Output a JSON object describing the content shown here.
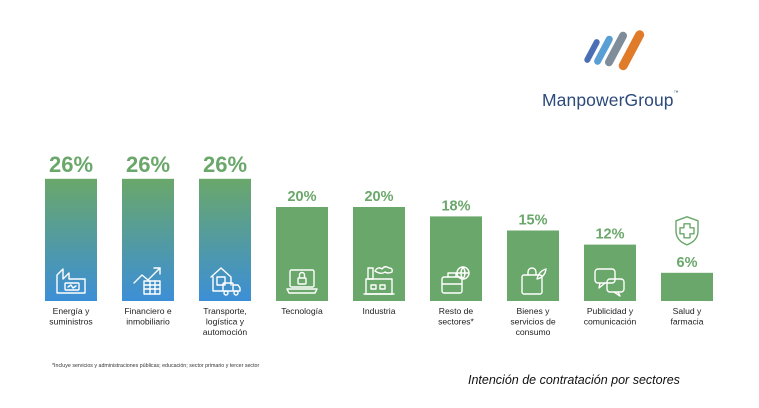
{
  "brand": {
    "name": "ManpowerGroup",
    "trademark": "™",
    "colors": [
      "#4a6fb5",
      "#5a9fd4",
      "#7f8c99",
      "#e07b2a"
    ]
  },
  "chart_data": {
    "type": "bar",
    "categories": [
      "Energía y suministros",
      "Financiero e inmobiliario",
      "Transporte, logística y automoción",
      "Tecnología",
      "Industria",
      "Resto de sectores*",
      "Bienes y servicios de consumo",
      "Publicidad y comunicación",
      "Salud y farmacia"
    ],
    "category_lines": [
      [
        "Energía y",
        "suministros"
      ],
      [
        "Financiero e",
        "inmobiliario"
      ],
      [
        "Transporte,",
        "logística y",
        "automoción"
      ],
      [
        "Tecnología"
      ],
      [
        "Industria"
      ],
      [
        "Resto de",
        "sectores*"
      ],
      [
        "Bienes y",
        "servicios de",
        "consumo"
      ],
      [
        "Publicidad y",
        "comunicación"
      ],
      [
        "Salud y",
        "farmacia"
      ]
    ],
    "values": [
      26,
      26,
      26,
      20,
      20,
      18,
      15,
      12,
      6
    ],
    "value_labels": [
      "26%",
      "26%",
      "26%",
      "20%",
      "20%",
      "18%",
      "15%",
      "12%",
      "6%"
    ],
    "icons": [
      "factory-battery-icon",
      "rising-chart-icon",
      "warehouse-truck-icon",
      "laptop-lock-icon",
      "factory-icon",
      "briefcase-globe-icon",
      "shopping-bag-icon",
      "chat-bubbles-icon",
      "health-shield-icon"
    ],
    "highlight_top": 3,
    "colors": {
      "gradient_top": "#6aa76a",
      "gradient_bottom": "#3c8fd6",
      "bar": "#6aa76a",
      "value_text": "#6aa76a"
    }
  },
  "footnote": "*Incluye servicios y administraciones públicas; educación; sector primario y tercer sector",
  "caption": "Intención de contratación por sectores"
}
